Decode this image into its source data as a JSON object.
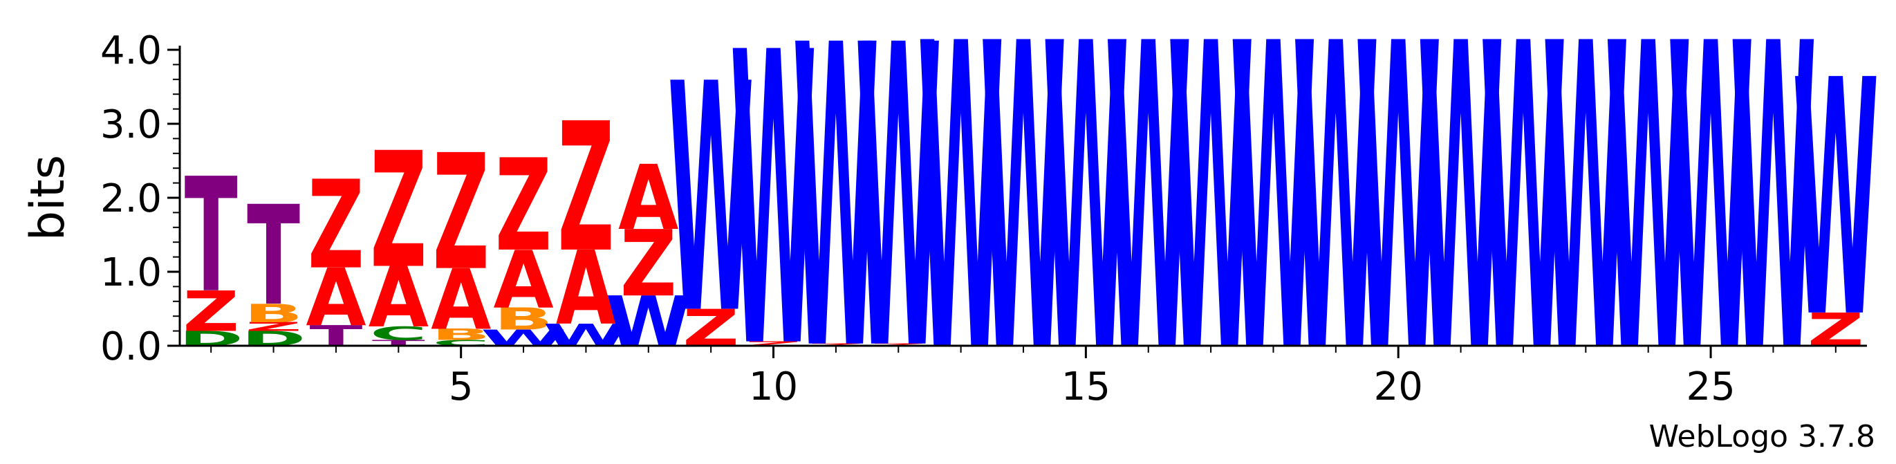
{
  "chart_data": {
    "type": "sequence-logo",
    "ylabel": "bits",
    "ylim": [
      0,
      4.0
    ],
    "y_ticks": [
      "0.0",
      "1.0",
      "2.0",
      "3.0",
      "4.0"
    ],
    "x_ticks": [
      "5",
      "10",
      "15",
      "20",
      "25"
    ],
    "x_tick_positions": [
      5,
      10,
      15,
      20,
      25
    ],
    "positions": 27,
    "footer": "WebLogo 3.7.8",
    "colors": {
      "T": "#800080",
      "Z": "#ff0000",
      "A": "#ff0000",
      "B": "#ff8c00",
      "D": "#008000",
      "C": "#008000",
      "W": "#0000ff"
    },
    "columns": [
      {
        "position": 1,
        "stack": [
          {
            "letter": "D",
            "bits": 0.2
          },
          {
            "letter": "Z",
            "bits": 0.55
          },
          {
            "letter": "T",
            "bits": 1.55
          }
        ]
      },
      {
        "position": 2,
        "stack": [
          {
            "letter": "D",
            "bits": 0.2
          },
          {
            "letter": "Z",
            "bits": 0.12
          },
          {
            "letter": "B",
            "bits": 0.25
          },
          {
            "letter": "T",
            "bits": 1.35
          }
        ]
      },
      {
        "position": 3,
        "stack": [
          {
            "letter": "T",
            "bits": 0.28
          },
          {
            "letter": "A",
            "bits": 0.78
          },
          {
            "letter": "Z",
            "bits": 1.2
          }
        ]
      },
      {
        "position": 4,
        "stack": [
          {
            "letter": "T",
            "bits": 0.08
          },
          {
            "letter": "C",
            "bits": 0.18
          },
          {
            "letter": "A",
            "bits": 0.82
          },
          {
            "letter": "Z",
            "bits": 1.57
          }
        ]
      },
      {
        "position": 5,
        "stack": [
          {
            "letter": "C",
            "bits": 0.08
          },
          {
            "letter": "B",
            "bits": 0.15
          },
          {
            "letter": "A",
            "bits": 0.82
          },
          {
            "letter": "Z",
            "bits": 1.57
          }
        ]
      },
      {
        "position": 6,
        "stack": [
          {
            "letter": "W",
            "bits": 0.22
          },
          {
            "letter": "B",
            "bits": 0.3
          },
          {
            "letter": "A",
            "bits": 0.78
          },
          {
            "letter": "Z",
            "bits": 1.25
          }
        ]
      },
      {
        "position": 7,
        "stack": [
          {
            "letter": "W",
            "bits": 0.3
          },
          {
            "letter": "A",
            "bits": 1.0
          },
          {
            "letter": "Z",
            "bits": 1.75
          }
        ]
      },
      {
        "position": 8,
        "stack": [
          {
            "letter": "W",
            "bits": 0.68
          },
          {
            "letter": "Z",
            "bits": 0.9
          },
          {
            "letter": "A",
            "bits": 0.88
          }
        ]
      },
      {
        "position": 9,
        "stack": [
          {
            "letter": "Z",
            "bits": 0.5
          },
          {
            "letter": "W",
            "bits": 3.1
          }
        ]
      },
      {
        "position": 10,
        "stack": [
          {
            "letter": "Z",
            "bits": 0.06
          },
          {
            "letter": "W",
            "bits": 3.97
          }
        ]
      },
      {
        "position": 11,
        "stack": [
          {
            "letter": "Z",
            "bits": 0.03
          },
          {
            "letter": "W",
            "bits": 4.1
          }
        ]
      },
      {
        "position": 12,
        "stack": [
          {
            "letter": "Z",
            "bits": 0.03
          },
          {
            "letter": "W",
            "bits": 4.1
          }
        ]
      },
      {
        "position": 13,
        "stack": [
          {
            "letter": "W",
            "bits": 4.15
          }
        ]
      },
      {
        "position": 14,
        "stack": [
          {
            "letter": "W",
            "bits": 4.15
          }
        ]
      },
      {
        "position": 15,
        "stack": [
          {
            "letter": "W",
            "bits": 4.15
          }
        ]
      },
      {
        "position": 16,
        "stack": [
          {
            "letter": "W",
            "bits": 4.15
          }
        ]
      },
      {
        "position": 17,
        "stack": [
          {
            "letter": "W",
            "bits": 4.15
          }
        ]
      },
      {
        "position": 18,
        "stack": [
          {
            "letter": "W",
            "bits": 4.15
          }
        ]
      },
      {
        "position": 19,
        "stack": [
          {
            "letter": "W",
            "bits": 4.15
          }
        ]
      },
      {
        "position": 20,
        "stack": [
          {
            "letter": "W",
            "bits": 4.15
          }
        ]
      },
      {
        "position": 21,
        "stack": [
          {
            "letter": "W",
            "bits": 4.15
          }
        ]
      },
      {
        "position": 22,
        "stack": [
          {
            "letter": "W",
            "bits": 4.15
          }
        ]
      },
      {
        "position": 23,
        "stack": [
          {
            "letter": "W",
            "bits": 4.15
          }
        ]
      },
      {
        "position": 24,
        "stack": [
          {
            "letter": "W",
            "bits": 4.15
          }
        ]
      },
      {
        "position": 25,
        "stack": [
          {
            "letter": "W",
            "bits": 4.15
          }
        ]
      },
      {
        "position": 26,
        "stack": [
          {
            "letter": "W",
            "bits": 4.15
          }
        ]
      },
      {
        "position": 27,
        "stack": [
          {
            "letter": "Z",
            "bits": 0.45
          },
          {
            "letter": "W",
            "bits": 3.2
          }
        ]
      }
    ]
  }
}
